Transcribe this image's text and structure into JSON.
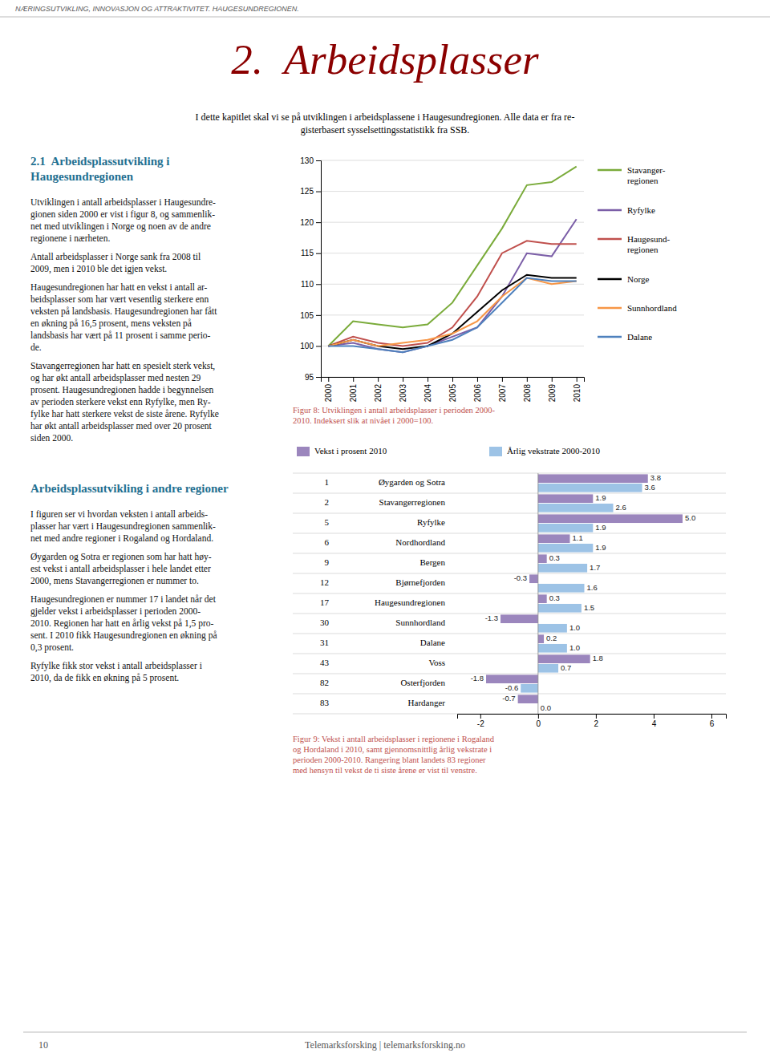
{
  "header": "NÆRINGSUTVIKLING, INNOVASJON OG ATTRAKTIVITET. HAUGESUNDREGIONEN.",
  "title": "2.  Arbeidsplasser",
  "subtitle": [
    "I dette kapitlet skal vi se på utviklingen i arbeidsplassene i Haugesundregionen. Alle data er fra re-",
    "gisterbasert sysselsettingsstatistikk fra SSB."
  ],
  "sections": [
    {
      "title": [
        "2.1  Arbeidsplassutvikling i",
        "Haugesundregionen"
      ],
      "paragraphs": [
        [
          "Utviklingen i antall arbeidsplasser i Haugesundre-",
          "gionen siden 2000 er vist i figur 8, og sammenlik-",
          "net med utviklingen i Norge og noen av de andre",
          "regionene i nærheten."
        ],
        [
          "Antall arbeidsplasser i Norge sank fra 2008 til",
          "2009, men i 2010 ble det igjen vekst."
        ],
        [
          "Haugesundregionen har hatt en vekst i antall ar-",
          "beidsplasser som har vært vesentlig sterkere enn",
          "veksten på landsbasis. Haugesundregionen har fått",
          "en økning på 16,5 prosent, mens veksten på",
          "landsbasis har vært på 11 prosent i samme perio-",
          "de."
        ],
        [
          "Stavangerregionen har hatt en spesielt sterk vekst,",
          "og har økt antall arbeidsplasser med nesten 29",
          "prosent. Haugesundregionen hadde i begynnelsen",
          "av perioden sterkere vekst enn Ryfylke, men Ry-",
          "fylke har hatt sterkere vekst de siste årene. Ryfylke",
          "har økt antall arbeidsplasser med over 20 prosent",
          "siden 2000."
        ]
      ]
    },
    {
      "title": [
        "Arbeidsplassutvikling i andre regioner"
      ],
      "paragraphs": [
        [
          "I figuren ser vi hvordan veksten i antall arbeids-",
          "plasser har vært i Haugesundregionen sammenlik-",
          "net med andre regioner i Rogaland og Hordaland."
        ],
        [
          "Øygarden og Sotra er regionen som har hatt høy-",
          "est vekst i antall arbeidsplasser i hele landet etter",
          "2000, mens Stavangerregionen er nummer to."
        ],
        [
          "Haugesundregionen er nummer 17 i landet når det",
          "gjelder vekst i arbeidsplasser i perioden 2000-",
          "2010. Regionen har hatt en årlig vekst på 1,5 pro-",
          "sent. I 2010 fikk Haugesundregionen en økning på",
          "0,3 prosent."
        ],
        [
          "Ryfylke fikk stor vekst i antall arbeidsplasser i",
          "2010, da de fikk en økning på 5 prosent."
        ]
      ]
    }
  ],
  "footer": [
    "10",
    "Telemarksforsking | telemarksforsking.no"
  ],
  "chart_data": [
    {
      "type": "line",
      "title": [
        "Figur 8: Utviklingen i antall arbeidsplasser i perioden 2000-",
        "2010. Indeksert slik at nivået i 2000=100."
      ],
      "x": [
        2000,
        2001,
        2002,
        2003,
        2004,
        2005,
        2006,
        2007,
        2008,
        2009,
        2010
      ],
      "series": [
        {
          "name": "Stavanger-\nregionen",
          "color": "#7aab3a",
          "values": [
            100.0,
            104.0,
            103.5,
            103.0,
            103.5,
            107.0,
            113.0,
            119.0,
            126.0,
            126.5,
            129.0
          ]
        },
        {
          "name": "Ryfylke",
          "color": "#7b5ea7",
          "values": [
            100.0,
            100.5,
            99.5,
            99.0,
            100.0,
            101.5,
            103.0,
            108.0,
            115.0,
            114.5,
            120.5
          ]
        },
        {
          "name": "Haugesund-\nregionen",
          "color": "#c0504d",
          "values": [
            100.0,
            101.5,
            100.5,
            100.0,
            100.5,
            103.0,
            108.0,
            115.0,
            117.0,
            116.5,
            116.5
          ]
        },
        {
          "name": "Norge",
          "color": "#000000",
          "values": [
            100.0,
            101.0,
            100.0,
            99.5,
            100.0,
            102.0,
            105.5,
            109.0,
            111.5,
            111.0,
            111.0
          ]
        },
        {
          "name": "Sunnhordland",
          "color": "#f79646",
          "values": [
            100.0,
            101.0,
            100.0,
            100.5,
            101.0,
            102.0,
            104.0,
            108.0,
            111.0,
            110.0,
            110.5
          ]
        },
        {
          "name": "Dalane",
          "color": "#4f81bd",
          "values": [
            100.0,
            100.0,
            99.5,
            99.0,
            100.0,
            101.0,
            103.0,
            107.0,
            111.0,
            110.5,
            110.5
          ]
        }
      ],
      "xlim": [
        1999.7,
        2010.3
      ],
      "xticks": [
        2000,
        2001,
        2002,
        2003,
        2004,
        2005,
        2006,
        2007,
        2008,
        2009,
        2010
      ],
      "ylim": [
        95,
        130
      ],
      "yticks": [
        95,
        100,
        105,
        110,
        115,
        120,
        125,
        130
      ],
      "grid": true,
      "legend": "right"
    },
    {
      "type": "bar",
      "orientation": "horizontal",
      "title": [
        "Figur 9: Vekst i antall arbeidsplasser i regionene i Rogaland",
        "og Hordaland i 2010, samt gjennomsnittlig årlig vekstrate i",
        "perioden 2000-2010. Rangering blant landets 83 regioner",
        "med hensyn til vekst de ti siste årene er vist til venstre."
      ],
      "categories": [
        "Øygarden og Sotra",
        "Stavangerregionen",
        "Ryfylke",
        "Nordhordland",
        "Bergen",
        "Bjørnefjorden",
        "Haugesundregionen",
        "Sunnhordland",
        "Dalane",
        "Voss",
        "Osterfjorden",
        "Hardanger"
      ],
      "ranks": [
        1,
        2,
        5,
        6,
        9,
        12,
        17,
        30,
        31,
        43,
        82,
        83
      ],
      "series": [
        {
          "name": "Vekst i prosent 2010",
          "color": "#9b86bd",
          "values": [
            3.8,
            1.9,
            5.0,
            1.1,
            0.3,
            -0.3,
            0.3,
            -1.3,
            0.2,
            1.8,
            -1.8,
            -0.7
          ],
          "value_labels": [
            "3.8",
            "1.9",
            "5.0",
            "1.1",
            "0.3",
            "-0.3",
            "0.3",
            "-1.3",
            "0.2",
            "1.8",
            "-1.8",
            "-0.7"
          ]
        },
        {
          "name": "Årlig vekstrate 2000-2010",
          "color": "#9dc3e6",
          "values": [
            3.6,
            2.6,
            1.9,
            1.9,
            1.7,
            1.6,
            1.5,
            1.0,
            1.0,
            0.7,
            -0.6,
            0.0
          ],
          "value_labels": [
            "3.6",
            "2.6",
            "1.9",
            "1.9",
            "1.7",
            "1.6",
            "1.5",
            "1.0",
            "1.0",
            "0.7",
            "-0.6",
            "0.0"
          ]
        }
      ],
      "xlim": [
        -2.8,
        6.5
      ],
      "xticks": [
        -2,
        0,
        2,
        4,
        6
      ],
      "data_labels": true,
      "grid": false,
      "legend": "top"
    }
  ]
}
